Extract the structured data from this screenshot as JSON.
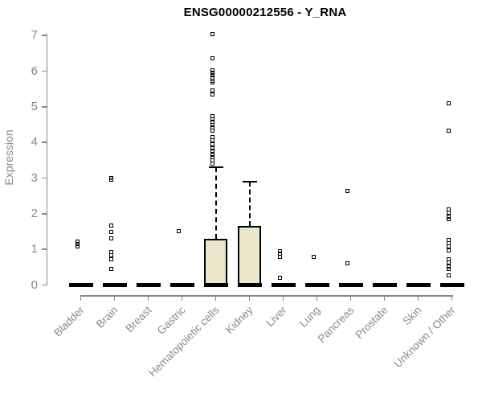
{
  "title": "ENSG00000212556 - Y_RNA",
  "chart_data": {
    "type": "boxplot",
    "title": "ENSG00000212556 - Y_RNA",
    "xlabel": "",
    "ylabel": "Expression",
    "ylim": [
      0,
      7
    ],
    "yticks": [
      0,
      1,
      2,
      3,
      4,
      5,
      6,
      7
    ],
    "grid": false,
    "legend": "none",
    "categories": [
      "Bladder",
      "Brain",
      "Breast",
      "Gastric",
      "Hematopoietic cells",
      "Kidney",
      "Liver",
      "Lung",
      "Pancreas",
      "Prostate",
      "Skin",
      "Unknown / Other"
    ],
    "series": [
      {
        "category": "Bladder",
        "q1": 0,
        "median": 0,
        "q3": 0,
        "whisker_low": 0,
        "whisker_high": 0,
        "outliers": [
          1.22,
          1.15,
          1.08
        ]
      },
      {
        "category": "Brain",
        "q1": 0,
        "median": 0,
        "q3": 0,
        "whisker_low": 0,
        "whisker_high": 0,
        "outliers": [
          3.0,
          2.96,
          1.67,
          1.48,
          1.31,
          0.93,
          0.84,
          0.73,
          0.44
        ]
      },
      {
        "category": "Breast",
        "q1": 0,
        "median": 0,
        "q3": 0,
        "whisker_low": 0,
        "whisker_high": 0,
        "outliers": []
      },
      {
        "category": "Gastric",
        "q1": 0,
        "median": 0,
        "q3": 0,
        "whisker_low": 0,
        "whisker_high": 0,
        "outliers": [
          1.52
        ]
      },
      {
        "category": "Hematopoietic cells",
        "q1": 0,
        "median": 0,
        "q3": 1.3,
        "whisker_low": 0,
        "whisker_high": 3.3,
        "outliers": [
          7.03,
          6.37,
          6.02,
          5.95,
          5.88,
          5.81,
          5.74,
          5.68,
          5.45,
          5.34,
          4.73,
          4.65,
          4.57,
          4.49,
          4.43,
          4.33,
          4.16,
          4.05,
          3.94,
          3.83,
          3.76,
          3.65,
          3.58,
          3.49,
          3.41
        ]
      },
      {
        "category": "Kidney",
        "q1": 0,
        "median": 0,
        "q3": 1.65,
        "whisker_low": 0,
        "whisker_high": 2.9,
        "outliers": []
      },
      {
        "category": "Liver",
        "q1": 0,
        "median": 0,
        "q3": 0,
        "whisker_low": 0,
        "whisker_high": 0,
        "outliers": [
          0.95,
          0.88,
          0.8,
          0.2
        ]
      },
      {
        "category": "Lung",
        "q1": 0,
        "median": 0,
        "q3": 0,
        "whisker_low": 0,
        "whisker_high": 0,
        "outliers": [
          0.78
        ]
      },
      {
        "category": "Pancreas",
        "q1": 0,
        "median": 0,
        "q3": 0,
        "whisker_low": 0,
        "whisker_high": 0,
        "outliers": [
          2.65,
          0.6
        ]
      },
      {
        "category": "Prostate",
        "q1": 0,
        "median": 0,
        "q3": 0,
        "whisker_low": 0,
        "whisker_high": 0,
        "outliers": []
      },
      {
        "category": "Skin",
        "q1": 0,
        "median": 0,
        "q3": 0,
        "whisker_low": 0,
        "whisker_high": 0,
        "outliers": []
      },
      {
        "category": "Unknown / Other",
        "q1": 0,
        "median": 0,
        "q3": 0,
        "whisker_low": 0,
        "whisker_high": 0,
        "outliers": [
          5.09,
          4.32,
          2.12,
          2.02,
          1.92,
          1.86,
          1.26,
          1.17,
          1.08,
          0.97,
          0.73,
          0.63,
          0.53,
          0.44,
          0.28
        ]
      }
    ],
    "colors": {
      "box_fill": "#ece7cb",
      "box_border": "#000000",
      "median": "#000000",
      "whisker": "#000000",
      "outlier": "#000000",
      "axis": "#888888",
      "tick_label": "#8a8a8a",
      "title": "#000000"
    }
  }
}
